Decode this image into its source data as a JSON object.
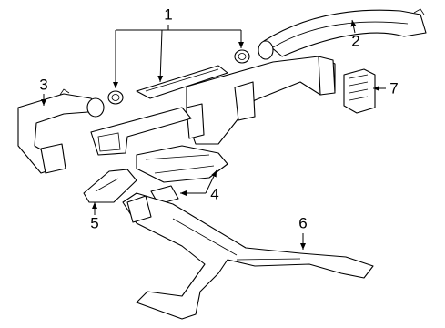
{
  "callouts": [
    {
      "label": "1"
    },
    {
      "label": "2"
    },
    {
      "label": "3"
    },
    {
      "label": "4"
    },
    {
      "label": "5"
    },
    {
      "label": "6"
    },
    {
      "label": "7"
    }
  ]
}
